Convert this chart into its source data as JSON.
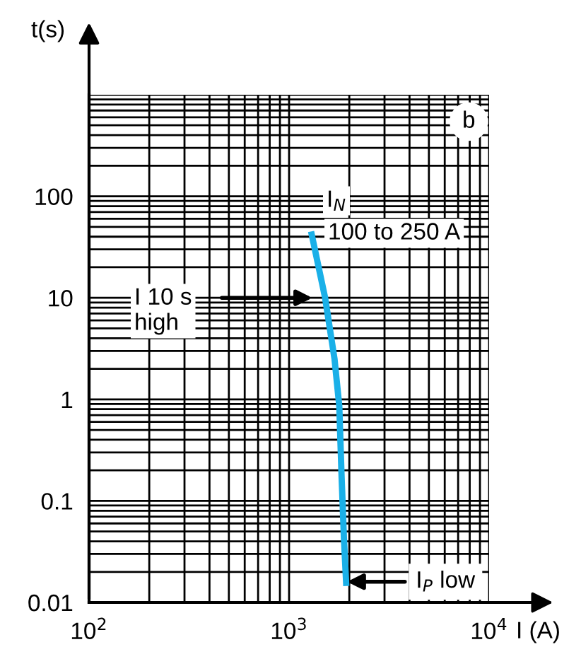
{
  "chart_data": {
    "type": "line",
    "xlabel": "I (A)",
    "ylabel": "t(s)",
    "log": "xy",
    "xlim": [
      100,
      10000
    ],
    "ylim": [
      0.01,
      1000
    ],
    "xticks": [
      {
        "value": 100,
        "label": "10$^{2}$"
      },
      {
        "value": 1000,
        "label": "10$^{3}$"
      },
      {
        "value": 10000,
        "label": "10$^{4}$"
      }
    ],
    "yticks": [
      0.01,
      0.1,
      1,
      10,
      100,
      {
        "value": 1000,
        "label": null
      }
    ],
    "grid": true,
    "legend": false,
    "marker": "none",
    "line_style": "solid",
    "series": [
      {
        "color": "#1ab0e8",
        "x": [
          1288,
          1514,
          1687,
          1782,
          1831,
          1880,
          1932
        ],
        "values": [
          45,
          10,
          2.5,
          0.86,
          0.17,
          0.043,
          0.0145
        ]
      }
    ],
    "annotations": [
      "b",
      "I$_{N}$",
      "100 to 250 A",
      "I 10 s\nhigh",
      {
        "text": "I$_{P}$ low",
        "x": 1950,
        "y": 0.016
      }
    ]
  }
}
